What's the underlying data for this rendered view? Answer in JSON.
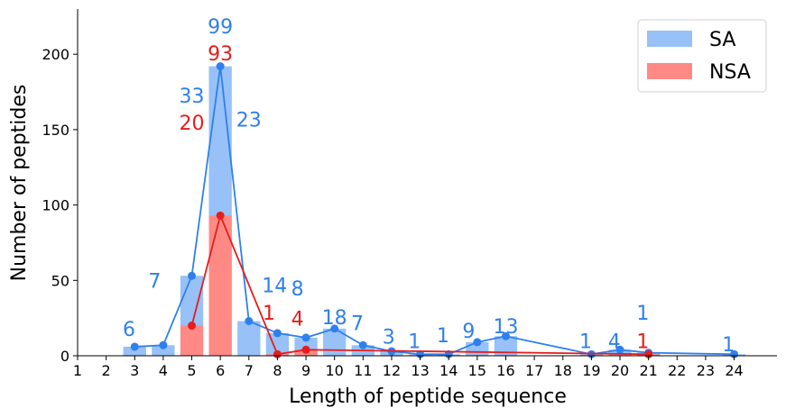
{
  "chart_data": {
    "type": "bar",
    "xlabel": "Length of peptide sequence",
    "ylabel": "Number of peptides",
    "ylim": [
      0,
      230
    ],
    "xlim": [
      1,
      25.5
    ],
    "x_ticks": [
      1,
      2,
      3,
      4,
      5,
      6,
      7,
      8,
      9,
      10,
      11,
      12,
      13,
      14,
      15,
      16,
      17,
      18,
      19,
      20,
      21,
      22,
      23,
      24
    ],
    "y_ticks": [
      0,
      50,
      100,
      150,
      200
    ],
    "legend_position": "top-right",
    "grid": false,
    "colors": {
      "sa_bar": "#97c1f7",
      "nsa_bar": "#ff8a85",
      "sa_line": "#2f80ed",
      "nsa_line": "#e81c1c"
    },
    "series": [
      {
        "name": "SA",
        "bars": [
          {
            "x": 3,
            "y": 6
          },
          {
            "x": 4,
            "y": 7
          },
          {
            "x": 5,
            "y": 53
          },
          {
            "x": 6,
            "y": 192
          },
          {
            "x": 7,
            "y": 23
          },
          {
            "x": 8,
            "y": 15
          },
          {
            "x": 9,
            "y": 12
          },
          {
            "x": 10,
            "y": 18
          },
          {
            "x": 11,
            "y": 7
          },
          {
            "x": 12,
            "y": 3
          },
          {
            "x": 13,
            "y": 1
          },
          {
            "x": 14,
            "y": 1
          },
          {
            "x": 15,
            "y": 9
          },
          {
            "x": 16,
            "y": 13
          },
          {
            "x": 19,
            "y": 1
          },
          {
            "x": 20,
            "y": 4
          },
          {
            "x": 21,
            "y": 2
          },
          {
            "x": 24,
            "y": 1
          }
        ],
        "line": [
          {
            "x": 3,
            "y": 6
          },
          {
            "x": 4,
            "y": 7
          },
          {
            "x": 5,
            "y": 53
          },
          {
            "x": 6,
            "y": 192
          },
          {
            "x": 7,
            "y": 23
          },
          {
            "x": 8,
            "y": 15
          },
          {
            "x": 9,
            "y": 12
          },
          {
            "x": 10,
            "y": 18
          },
          {
            "x": 11,
            "y": 7
          },
          {
            "x": 12,
            "y": 3
          },
          {
            "x": 13,
            "y": 1
          },
          {
            "x": 14,
            "y": 1
          },
          {
            "x": 15,
            "y": 9
          },
          {
            "x": 16,
            "y": 13
          },
          {
            "x": 19,
            "y": 1
          },
          {
            "x": 20,
            "y": 4
          },
          {
            "x": 21,
            "y": 2
          },
          {
            "x": 24,
            "y": 1
          }
        ]
      },
      {
        "name": "NSA",
        "bars": [
          {
            "x": 5,
            "y": 20
          },
          {
            "x": 6,
            "y": 93
          },
          {
            "x": 8,
            "y": 1
          },
          {
            "x": 9,
            "y": 4
          },
          {
            "x": 21,
            "y": 1
          }
        ],
        "line": [
          {
            "x": 5,
            "y": 20
          },
          {
            "x": 6,
            "y": 93
          },
          {
            "x": 8,
            "y": 1
          },
          {
            "x": 9,
            "y": 4
          },
          {
            "x": 21,
            "y": 1
          }
        ]
      }
    ],
    "annotations": [
      {
        "text": "6",
        "x": 2.8,
        "y": 13,
        "series": "SA"
      },
      {
        "text": "7",
        "x": 3.7,
        "y": 45,
        "series": "SA"
      },
      {
        "text": "33",
        "x": 5,
        "y": 168,
        "series": "SA"
      },
      {
        "text": "20",
        "x": 5,
        "y": 150,
        "series": "NSA"
      },
      {
        "text": "99",
        "x": 6,
        "y": 214,
        "series": "SA"
      },
      {
        "text": "93",
        "x": 6,
        "y": 196,
        "series": "NSA"
      },
      {
        "text": "23",
        "x": 7,
        "y": 152,
        "series": "SA"
      },
      {
        "text": "14",
        "x": 7.9,
        "y": 42,
        "series": "SA"
      },
      {
        "text": "1",
        "x": 7.7,
        "y": 24,
        "series": "NSA"
      },
      {
        "text": "8",
        "x": 8.7,
        "y": 40,
        "series": "SA"
      },
      {
        "text": "4",
        "x": 8.7,
        "y": 20,
        "series": "NSA"
      },
      {
        "text": "18",
        "x": 10,
        "y": 21,
        "series": "SA"
      },
      {
        "text": "7",
        "x": 10.8,
        "y": 17,
        "series": "SA"
      },
      {
        "text": "3",
        "x": 11.9,
        "y": 8,
        "series": "SA"
      },
      {
        "text": "1",
        "x": 12.8,
        "y": 5,
        "series": "SA"
      },
      {
        "text": "1",
        "x": 13.8,
        "y": 9,
        "series": "SA"
      },
      {
        "text": "9",
        "x": 14.7,
        "y": 12,
        "series": "SA"
      },
      {
        "text": "13",
        "x": 16,
        "y": 15,
        "series": "SA"
      },
      {
        "text": "1",
        "x": 18.8,
        "y": 5,
        "series": "SA"
      },
      {
        "text": "4",
        "x": 19.8,
        "y": 5,
        "series": "SA"
      },
      {
        "text": "1",
        "x": 20.8,
        "y": 24,
        "series": "SA"
      },
      {
        "text": "1",
        "x": 20.8,
        "y": 5,
        "series": "NSA"
      },
      {
        "text": "1",
        "x": 23.8,
        "y": 3,
        "series": "SA"
      }
    ]
  }
}
